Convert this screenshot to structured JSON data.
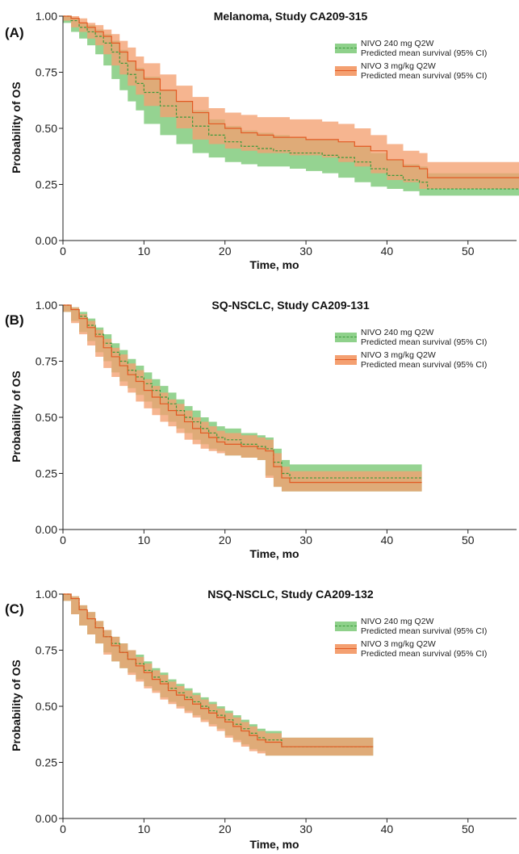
{
  "chart_data": [
    {
      "type": "line",
      "panel_label": "(A)",
      "title": "Melanoma, Study CA209-315",
      "xlabel": "Time, mo",
      "ylabel": "Probability of OS",
      "xlim": [
        0,
        56
      ],
      "ylim": [
        0,
        1
      ],
      "xticks": [
        "0",
        "10",
        "20",
        "30",
        "40",
        "50"
      ],
      "yticks": [
        "0.00",
        "0.25",
        "0.50",
        "0.75",
        "1.00"
      ],
      "grid": false,
      "legend_position": "top-right",
      "series": [
        {
          "name": "NIVO 240 mg Q2W",
          "ci_label": "Predicted mean survival (95% CI)",
          "color": "#3a9a3a",
          "band_color": "#8fd18b",
          "line_style": "dashed",
          "x": [
            0,
            1,
            2,
            3,
            4,
            5,
            6,
            7,
            8,
            9,
            10,
            12,
            14,
            16,
            18,
            20,
            22,
            24,
            26,
            28,
            30,
            32,
            34,
            36,
            38,
            40,
            42,
            44,
            45,
            56.5
          ],
          "y": [
            1.0,
            0.98,
            0.95,
            0.93,
            0.91,
            0.88,
            0.84,
            0.79,
            0.74,
            0.7,
            0.66,
            0.6,
            0.55,
            0.51,
            0.47,
            0.44,
            0.42,
            0.41,
            0.4,
            0.39,
            0.39,
            0.38,
            0.37,
            0.35,
            0.32,
            0.29,
            0.27,
            0.26,
            0.23,
            0.23
          ],
          "lower": [
            1.0,
            0.97,
            0.93,
            0.9,
            0.87,
            0.83,
            0.78,
            0.72,
            0.67,
            0.62,
            0.58,
            0.52,
            0.47,
            0.43,
            0.39,
            0.37,
            0.35,
            0.34,
            0.33,
            0.33,
            0.32,
            0.31,
            0.3,
            0.28,
            0.26,
            0.24,
            0.23,
            0.22,
            0.2,
            0.2
          ],
          "upper": [
            1.0,
            0.99,
            0.97,
            0.96,
            0.94,
            0.92,
            0.89,
            0.85,
            0.8,
            0.77,
            0.73,
            0.67,
            0.62,
            0.58,
            0.54,
            0.51,
            0.49,
            0.48,
            0.47,
            0.46,
            0.45,
            0.45,
            0.44,
            0.42,
            0.39,
            0.36,
            0.34,
            0.33,
            0.3,
            0.3
          ]
        },
        {
          "name": "NIVO 3 mg/kg Q2W",
          "ci_label": "Predicted mean survival (95% CI)",
          "color": "#e25a23",
          "band_color": "#f4a071",
          "line_style": "solid",
          "x": [
            0,
            1,
            2,
            3,
            4,
            5,
            6,
            7,
            8,
            9,
            10,
            12,
            14,
            16,
            18,
            20,
            22,
            24,
            26,
            28,
            30,
            32,
            34,
            36,
            38,
            40,
            42,
            44,
            45,
            56.5
          ],
          "y": [
            1.0,
            0.99,
            0.97,
            0.95,
            0.93,
            0.91,
            0.88,
            0.84,
            0.8,
            0.76,
            0.72,
            0.67,
            0.62,
            0.57,
            0.52,
            0.5,
            0.48,
            0.47,
            0.46,
            0.46,
            0.45,
            0.45,
            0.44,
            0.42,
            0.4,
            0.36,
            0.33,
            0.32,
            0.28,
            0.28
          ],
          "lower": [
            1.0,
            0.98,
            0.95,
            0.93,
            0.9,
            0.87,
            0.83,
            0.78,
            0.74,
            0.69,
            0.65,
            0.6,
            0.55,
            0.5,
            0.45,
            0.43,
            0.41,
            0.4,
            0.39,
            0.39,
            0.38,
            0.38,
            0.37,
            0.35,
            0.33,
            0.3,
            0.27,
            0.26,
            0.23,
            0.23
          ],
          "upper": [
            1.0,
            1.0,
            0.99,
            0.97,
            0.96,
            0.94,
            0.92,
            0.89,
            0.86,
            0.82,
            0.79,
            0.74,
            0.69,
            0.64,
            0.59,
            0.57,
            0.56,
            0.55,
            0.55,
            0.54,
            0.54,
            0.53,
            0.52,
            0.5,
            0.47,
            0.43,
            0.4,
            0.39,
            0.35,
            0.35
          ]
        }
      ]
    },
    {
      "type": "line",
      "panel_label": "(B)",
      "title": "SQ-NSCLC, Study CA209-131",
      "xlabel": "Time, mo",
      "ylabel": "Probability of OS",
      "xlim": [
        0,
        56
      ],
      "ylim": [
        0,
        1
      ],
      "xticks": [
        "0",
        "10",
        "20",
        "30",
        "40",
        "50"
      ],
      "yticks": [
        "0.00",
        "0.25",
        "0.50",
        "0.75",
        "1.00"
      ],
      "grid": false,
      "legend_position": "top-right",
      "series": [
        {
          "name": "NIVO 240 mg Q2W",
          "ci_label": "Predicted mean survival (95% CI)",
          "color": "#3a9a3a",
          "band_color": "#8fd18b",
          "line_style": "dashed",
          "x": [
            0,
            1,
            2,
            3,
            4,
            5,
            6,
            7,
            8,
            9,
            10,
            11,
            12,
            13,
            14,
            15,
            16,
            17,
            18,
            19,
            20,
            22,
            24,
            25,
            26,
            27,
            28,
            44.3
          ],
          "y": [
            1.0,
            0.98,
            0.95,
            0.91,
            0.87,
            0.83,
            0.79,
            0.75,
            0.71,
            0.68,
            0.65,
            0.62,
            0.59,
            0.56,
            0.53,
            0.5,
            0.48,
            0.45,
            0.43,
            0.41,
            0.4,
            0.38,
            0.37,
            0.36,
            0.3,
            0.25,
            0.23,
            0.23
          ],
          "lower": [
            1.0,
            0.97,
            0.93,
            0.88,
            0.84,
            0.79,
            0.75,
            0.7,
            0.66,
            0.63,
            0.6,
            0.57,
            0.54,
            0.51,
            0.48,
            0.45,
            0.43,
            0.4,
            0.38,
            0.36,
            0.35,
            0.33,
            0.32,
            0.31,
            0.24,
            0.19,
            0.17,
            0.17
          ],
          "upper": [
            1.0,
            0.99,
            0.97,
            0.94,
            0.9,
            0.87,
            0.83,
            0.8,
            0.76,
            0.73,
            0.7,
            0.67,
            0.64,
            0.61,
            0.58,
            0.55,
            0.53,
            0.5,
            0.48,
            0.46,
            0.45,
            0.43,
            0.42,
            0.41,
            0.36,
            0.31,
            0.29,
            0.29
          ]
        },
        {
          "name": "NIVO 3 mg/kg Q2W",
          "ci_label": "Predicted mean survival (95% CI)",
          "color": "#e25a23",
          "band_color": "#f4a071",
          "line_style": "solid",
          "x": [
            0,
            1,
            2,
            3,
            4,
            5,
            6,
            7,
            8,
            9,
            10,
            11,
            12,
            13,
            14,
            15,
            16,
            17,
            18,
            19,
            20,
            22,
            24,
            25,
            26,
            27,
            28,
            44.3
          ],
          "y": [
            1.0,
            0.98,
            0.94,
            0.9,
            0.86,
            0.81,
            0.77,
            0.73,
            0.69,
            0.66,
            0.62,
            0.59,
            0.56,
            0.53,
            0.51,
            0.48,
            0.45,
            0.43,
            0.41,
            0.39,
            0.38,
            0.37,
            0.36,
            0.35,
            0.28,
            0.23,
            0.21,
            0.21
          ],
          "lower": [
            1.0,
            0.97,
            0.92,
            0.87,
            0.82,
            0.77,
            0.72,
            0.68,
            0.64,
            0.61,
            0.57,
            0.54,
            0.51,
            0.48,
            0.46,
            0.43,
            0.4,
            0.38,
            0.36,
            0.35,
            0.34,
            0.33,
            0.32,
            0.31,
            0.23,
            0.19,
            0.17,
            0.17
          ],
          "upper": [
            1.0,
            0.99,
            0.96,
            0.93,
            0.89,
            0.85,
            0.81,
            0.78,
            0.74,
            0.71,
            0.67,
            0.64,
            0.61,
            0.58,
            0.56,
            0.53,
            0.5,
            0.48,
            0.46,
            0.44,
            0.43,
            0.42,
            0.41,
            0.4,
            0.34,
            0.28,
            0.26,
            0.26
          ]
        }
      ]
    },
    {
      "type": "line",
      "panel_label": "(C)",
      "title": "NSQ-NSCLC, Study CA209-132",
      "xlabel": "Time, mo",
      "ylabel": "Probability of OS",
      "xlim": [
        0,
        56
      ],
      "ylim": [
        0,
        1
      ],
      "xticks": [
        "0",
        "10",
        "20",
        "30",
        "40",
        "50"
      ],
      "yticks": [
        "0.00",
        "0.25",
        "0.50",
        "0.75",
        "1.00"
      ],
      "grid": false,
      "legend_position": "top-right",
      "series": [
        {
          "name": "NIVO 240 mg Q2W",
          "ci_label": "Predicted mean survival (95% CI)",
          "color": "#3a9a3a",
          "band_color": "#8fd18b",
          "line_style": "dashed",
          "x": [
            0,
            1,
            2,
            3,
            4,
            5,
            6,
            7,
            8,
            9,
            10,
            11,
            12,
            13,
            14,
            15,
            16,
            17,
            18,
            19,
            20,
            21,
            22,
            23,
            24,
            25,
            27,
            38.3
          ],
          "y": [
            1.0,
            0.98,
            0.93,
            0.89,
            0.85,
            0.81,
            0.78,
            0.74,
            0.71,
            0.69,
            0.66,
            0.63,
            0.61,
            0.58,
            0.56,
            0.54,
            0.52,
            0.5,
            0.48,
            0.46,
            0.44,
            0.42,
            0.4,
            0.38,
            0.36,
            0.35,
            0.32,
            0.32
          ],
          "lower": [
            1.0,
            0.97,
            0.91,
            0.86,
            0.82,
            0.78,
            0.74,
            0.7,
            0.67,
            0.65,
            0.62,
            0.59,
            0.57,
            0.54,
            0.52,
            0.5,
            0.48,
            0.46,
            0.44,
            0.42,
            0.4,
            0.37,
            0.35,
            0.33,
            0.31,
            0.3,
            0.28,
            0.28
          ],
          "upper": [
            1.0,
            0.99,
            0.95,
            0.92,
            0.88,
            0.84,
            0.81,
            0.78,
            0.75,
            0.73,
            0.7,
            0.67,
            0.65,
            0.62,
            0.6,
            0.58,
            0.56,
            0.54,
            0.52,
            0.5,
            0.48,
            0.46,
            0.44,
            0.42,
            0.4,
            0.39,
            0.36,
            0.36
          ]
        },
        {
          "name": "NIVO 3 mg/kg Q2W",
          "ci_label": "Predicted mean survival (95% CI)",
          "color": "#e25a23",
          "band_color": "#f4a071",
          "line_style": "solid",
          "x": [
            0,
            1,
            2,
            3,
            4,
            5,
            6,
            7,
            8,
            9,
            10,
            11,
            12,
            13,
            14,
            15,
            16,
            17,
            18,
            19,
            20,
            21,
            22,
            23,
            24,
            25,
            27,
            38.3
          ],
          "y": [
            1.0,
            0.98,
            0.93,
            0.89,
            0.85,
            0.81,
            0.77,
            0.74,
            0.71,
            0.68,
            0.65,
            0.62,
            0.6,
            0.57,
            0.55,
            0.53,
            0.51,
            0.49,
            0.47,
            0.45,
            0.43,
            0.41,
            0.39,
            0.37,
            0.35,
            0.34,
            0.32,
            0.32
          ],
          "lower": [
            1.0,
            0.97,
            0.91,
            0.86,
            0.82,
            0.78,
            0.73,
            0.7,
            0.67,
            0.64,
            0.61,
            0.58,
            0.56,
            0.53,
            0.51,
            0.49,
            0.47,
            0.45,
            0.43,
            0.41,
            0.39,
            0.36,
            0.34,
            0.32,
            0.3,
            0.29,
            0.28,
            0.28
          ],
          "upper": [
            1.0,
            0.99,
            0.95,
            0.92,
            0.88,
            0.84,
            0.81,
            0.78,
            0.75,
            0.72,
            0.69,
            0.66,
            0.64,
            0.61,
            0.59,
            0.57,
            0.55,
            0.53,
            0.51,
            0.49,
            0.47,
            0.45,
            0.43,
            0.41,
            0.39,
            0.38,
            0.36,
            0.36
          ]
        }
      ]
    }
  ]
}
